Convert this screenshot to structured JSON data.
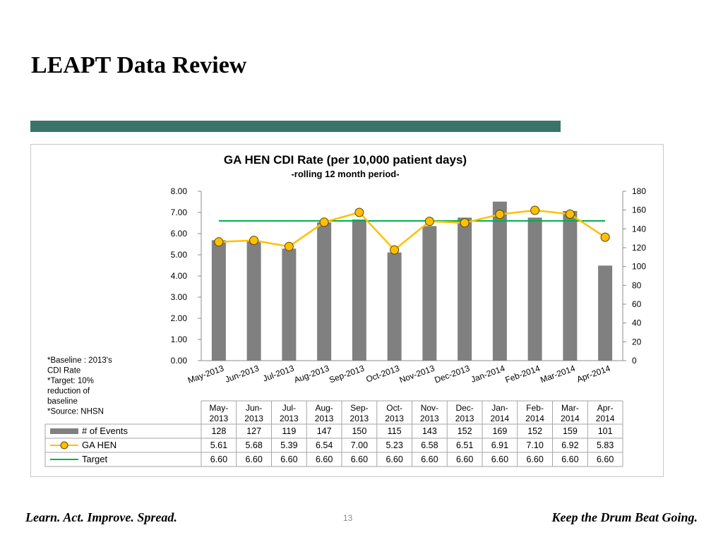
{
  "slide": {
    "title": "LEAPT Data Review",
    "footer_left": "Learn. Act. Improve. Spread.",
    "footer_right": "Keep the Drum Beat Going.",
    "page_number": "13"
  },
  "colors": {
    "accent_bar": "#3a7468",
    "bars": "#808080",
    "ga_hen_line": "#ffc000",
    "target_line": "#00b050"
  },
  "chart_data": {
    "type": "bar",
    "title": "GA HEN CDI Rate (per 10,000 patient days)",
    "subtitle": "-rolling 12 month period-",
    "categories": [
      "May-2013",
      "Jun-2013",
      "Jul-2013",
      "Aug-2013",
      "Sep-2013",
      "Oct-2013",
      "Nov-2013",
      "Dec-2013",
      "Jan-2014",
      "Feb-2014",
      "Mar-2014",
      "Apr-2014"
    ],
    "table_header_top": [
      "May-",
      "Jun-",
      "Jul-",
      "Aug-",
      "Sep-",
      "Oct-",
      "Nov-",
      "Dec-",
      "Jan-",
      "Feb-",
      "Mar-",
      "Apr-"
    ],
    "table_header_bottom": [
      "2013",
      "2013",
      "2013",
      "2013",
      "2013",
      "2013",
      "2013",
      "2013",
      "2014",
      "2014",
      "2014",
      "2014"
    ],
    "series": [
      {
        "name": "# of Events",
        "type": "bar",
        "axis": "right",
        "values": [
          128,
          127,
          119,
          147,
          150,
          115,
          143,
          152,
          169,
          152,
          159,
          101
        ]
      },
      {
        "name": "GA HEN",
        "type": "line",
        "axis": "left",
        "values": [
          5.61,
          5.68,
          5.39,
          6.54,
          7.0,
          5.23,
          6.58,
          6.51,
          6.91,
          7.1,
          6.92,
          5.83
        ]
      },
      {
        "name": "Target",
        "type": "line",
        "axis": "left",
        "values": [
          6.6,
          6.6,
          6.6,
          6.6,
          6.6,
          6.6,
          6.6,
          6.6,
          6.6,
          6.6,
          6.6,
          6.6
        ]
      }
    ],
    "table_values": [
      [
        "128",
        "127",
        "119",
        "147",
        "150",
        "115",
        "143",
        "152",
        "169",
        "152",
        "159",
        "101"
      ],
      [
        "5.61",
        "5.68",
        "5.39",
        "6.54",
        "7.00",
        "5.23",
        "6.58",
        "6.51",
        "6.91",
        "7.10",
        "6.92",
        "5.83"
      ],
      [
        "6.60",
        "6.60",
        "6.60",
        "6.60",
        "6.60",
        "6.60",
        "6.60",
        "6.60",
        "6.60",
        "6.60",
        "6.60",
        "6.60"
      ]
    ],
    "left_axis": {
      "min": 0,
      "max": 8,
      "ticks": [
        "0.00",
        "1.00",
        "2.00",
        "3.00",
        "4.00",
        "5.00",
        "6.00",
        "7.00",
        "8.00"
      ]
    },
    "right_axis": {
      "min": 0,
      "max": 180,
      "ticks": [
        "0",
        "20",
        "40",
        "60",
        "80",
        "100",
        "120",
        "140",
        "160",
        "180"
      ]
    },
    "notes": [
      "*Baseline : 2013's",
      "CDI Rate",
      "*Target: 10%",
      "reduction of",
      "baseline",
      "*Source: NHSN"
    ],
    "grid": false,
    "legend_placement": "data-table"
  }
}
